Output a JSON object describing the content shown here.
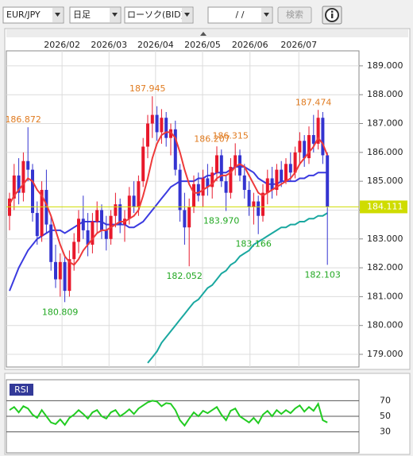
{
  "toolbar": {
    "pair": "EUR/JPY",
    "timeframe": "日足",
    "chart_kind": "ローソク(BID)",
    "date": "/ /",
    "search": "検索"
  },
  "chart_data": [
    {
      "type": "candlestick",
      "up_color": "#e8192c",
      "down_color": "#3434d0",
      "ylim": [
        178.56,
        189.52
      ],
      "yticks": [
        {
          "value": 179,
          "label": "179.000"
        },
        {
          "value": 180,
          "label": "180.000"
        },
        {
          "value": 181,
          "label": "181.000"
        },
        {
          "value": 182,
          "label": "182.000"
        },
        {
          "value": 183,
          "label": "183.000"
        },
        {
          "value": 184,
          "label": "184.000"
        },
        {
          "value": 185,
          "label": "185.000"
        },
        {
          "value": 186,
          "label": "186.000"
        },
        {
          "value": 187,
          "label": "187.000"
        },
        {
          "value": 188,
          "label": "188.000"
        },
        {
          "value": 189,
          "label": "189.000"
        }
      ],
      "xticks": [
        {
          "value": 11.4,
          "label": "2026/02"
        },
        {
          "value": 21.6,
          "label": "2026/03"
        },
        {
          "value": 31.7,
          "label": "2026/04"
        },
        {
          "value": 41.9,
          "label": "2026/05"
        },
        {
          "value": 52.2,
          "label": "2026/06"
        },
        {
          "value": 62.8,
          "label": "2026/07"
        }
      ],
      "grid": true,
      "ohlc": [
        [
          183.8,
          184.6,
          183.3,
          184.4
        ],
        [
          184.4,
          185.6,
          184.0,
          185.2
        ],
        [
          185.2,
          185.8,
          184.2,
          184.6
        ],
        [
          184.6,
          186.0,
          184.3,
          185.7
        ],
        [
          185.7,
          186.872,
          185.0,
          185.4
        ],
        [
          185.4,
          185.6,
          183.6,
          183.9
        ],
        [
          183.9,
          184.3,
          182.8,
          183.1
        ],
        [
          183.1,
          185.0,
          182.9,
          184.7
        ],
        [
          184.7,
          185.4,
          183.2,
          183.5
        ],
        [
          183.5,
          183.8,
          181.9,
          182.2
        ],
        [
          182.2,
          182.8,
          181.3,
          181.6
        ],
        [
          181.6,
          182.5,
          181.0,
          182.2
        ],
        [
          182.2,
          182.4,
          180.809,
          181.2
        ],
        [
          181.2,
          182.6,
          181.0,
          182.3
        ],
        [
          182.3,
          183.2,
          181.9,
          182.9
        ],
        [
          182.9,
          184.0,
          182.5,
          183.7
        ],
        [
          183.7,
          184.5,
          183.0,
          183.3
        ],
        [
          183.3,
          183.9,
          182.4,
          182.8
        ],
        [
          182.8,
          183.9,
          182.5,
          183.6
        ],
        [
          183.6,
          184.3,
          183.2,
          184.0
        ],
        [
          184.0,
          184.2,
          183.0,
          183.3
        ],
        [
          183.3,
          183.8,
          182.6,
          183.0
        ],
        [
          183.0,
          184.0,
          182.8,
          183.8
        ],
        [
          183.8,
          184.6,
          183.4,
          184.2
        ],
        [
          184.2,
          184.4,
          183.2,
          183.5
        ],
        [
          183.5,
          184.0,
          182.9,
          183.7
        ],
        [
          183.7,
          184.8,
          183.5,
          184.5
        ],
        [
          184.5,
          185.0,
          183.9,
          184.1
        ],
        [
          184.1,
          185.2,
          183.8,
          185.0
        ],
        [
          185.0,
          186.5,
          184.8,
          186.2
        ],
        [
          186.2,
          187.3,
          185.8,
          187.0
        ],
        [
          187.0,
          187.945,
          186.5,
          187.3
        ],
        [
          187.3,
          187.6,
          186.4,
          186.7
        ],
        [
          186.7,
          187.5,
          186.3,
          187.2
        ],
        [
          187.2,
          187.4,
          186.2,
          186.5
        ],
        [
          186.5,
          187.0,
          185.9,
          186.8
        ],
        [
          186.8,
          187.1,
          185.2,
          185.4
        ],
        [
          185.4,
          185.6,
          183.6,
          184.0
        ],
        [
          184.0,
          184.6,
          182.8,
          183.4
        ],
        [
          183.4,
          184.4,
          182.052,
          184.1
        ],
        [
          184.1,
          185.2,
          183.9,
          184.9
        ],
        [
          184.9,
          185.3,
          184.3,
          184.5
        ],
        [
          184.5,
          185.4,
          184.1,
          185.1
        ],
        [
          185.1,
          185.6,
          184.5,
          184.8
        ],
        [
          184.8,
          185.5,
          184.4,
          185.3
        ],
        [
          185.3,
          186.207,
          185.0,
          185.9
        ],
        [
          185.9,
          186.1,
          184.8,
          185.0
        ],
        [
          185.0,
          185.2,
          183.97,
          184.6
        ],
        [
          184.6,
          185.8,
          184.4,
          185.5
        ],
        [
          185.5,
          186.315,
          185.2,
          185.9
        ],
        [
          185.9,
          186.1,
          185.0,
          185.2
        ],
        [
          185.2,
          185.6,
          184.4,
          184.7
        ],
        [
          184.7,
          185.0,
          183.8,
          184.1
        ],
        [
          184.1,
          184.6,
          183.5,
          184.3
        ],
        [
          184.3,
          184.5,
          183.166,
          183.8
        ],
        [
          183.8,
          184.9,
          183.6,
          184.6
        ],
        [
          184.6,
          185.4,
          184.2,
          185.1
        ],
        [
          185.1,
          185.5,
          184.4,
          184.7
        ],
        [
          184.7,
          185.6,
          184.5,
          185.4
        ],
        [
          185.4,
          185.7,
          184.8,
          185.0
        ],
        [
          185.0,
          185.8,
          184.9,
          185.6
        ],
        [
          185.6,
          186.0,
          185.0,
          185.3
        ],
        [
          185.3,
          186.2,
          185.1,
          186.0
        ],
        [
          186.0,
          186.7,
          185.6,
          186.4
        ],
        [
          186.4,
          186.6,
          185.5,
          185.8
        ],
        [
          185.8,
          186.9,
          185.6,
          186.6
        ],
        [
          186.6,
          187.3,
          186.0,
          186.3
        ],
        [
          186.3,
          187.474,
          186.1,
          187.2
        ],
        [
          187.2,
          187.4,
          185.6,
          185.9
        ],
        [
          185.9,
          186.0,
          182.103,
          184.111
        ]
      ],
      "series": [
        {
          "color": "#ee3a3a",
          "values": [
            184.2,
            184.5,
            184.7,
            184.9,
            185.1,
            185.0,
            184.7,
            184.5,
            184.2,
            183.8,
            183.3,
            182.8,
            182.4,
            182.2,
            182.1,
            182.3,
            182.6,
            182.8,
            183.0,
            183.2,
            183.3,
            183.3,
            183.4,
            183.5,
            183.6,
            183.6,
            183.7,
            183.8,
            184.0,
            184.5,
            185.1,
            185.8,
            186.3,
            186.6,
            186.7,
            186.7,
            186.5,
            186.0,
            185.4,
            184.9,
            184.6,
            184.6,
            184.7,
            184.8,
            184.9,
            185.1,
            185.2,
            185.2,
            185.3,
            185.5,
            185.6,
            185.5,
            185.2,
            184.9,
            184.6,
            184.5,
            184.6,
            184.7,
            184.8,
            184.9,
            185.0,
            185.1,
            185.3,
            185.6,
            185.8,
            186.0,
            186.2,
            186.5,
            186.3,
            185.9
          ]
        },
        {
          "color": "#3b3be0",
          "values": [
            181.2,
            181.6,
            182.0,
            182.3,
            182.6,
            182.8,
            183.0,
            183.1,
            183.2,
            183.3,
            183.3,
            183.3,
            183.2,
            183.3,
            183.4,
            183.5,
            183.6,
            183.6,
            183.6,
            183.6,
            183.6,
            183.5,
            183.5,
            183.5,
            183.5,
            183.5,
            183.4,
            183.4,
            183.5,
            183.6,
            183.8,
            184.0,
            184.2,
            184.4,
            184.6,
            184.8,
            184.9,
            185.0,
            185.0,
            185.0,
            185.0,
            185.1,
            185.1,
            185.2,
            185.2,
            185.3,
            185.3,
            185.3,
            185.4,
            185.5,
            185.5,
            185.5,
            185.4,
            185.3,
            185.1,
            185.0,
            184.9,
            184.9,
            184.9,
            185.0,
            185.0,
            185.0,
            185.0,
            185.1,
            185.1,
            185.2,
            185.2,
            185.3,
            185.3,
            185.3
          ]
        },
        {
          "color": "#1aa8a0",
          "values": [
            null,
            null,
            null,
            null,
            null,
            null,
            null,
            null,
            null,
            null,
            null,
            null,
            null,
            null,
            null,
            null,
            null,
            null,
            null,
            null,
            null,
            null,
            null,
            null,
            null,
            null,
            null,
            null,
            null,
            null,
            178.7,
            178.9,
            179.1,
            179.4,
            179.6,
            179.8,
            180.0,
            180.2,
            180.4,
            180.6,
            180.8,
            180.9,
            181.1,
            181.3,
            181.4,
            181.6,
            181.8,
            181.9,
            182.1,
            182.2,
            182.4,
            182.5,
            182.6,
            182.8,
            182.9,
            183.0,
            183.1,
            183.2,
            183.3,
            183.4,
            183.4,
            183.5,
            183.5,
            183.6,
            183.6,
            183.7,
            183.7,
            183.8,
            183.8,
            183.9
          ]
        }
      ],
      "annotations": [
        {
          "text": "186.872",
          "value": 186.872,
          "x": 4,
          "kind": "high"
        },
        {
          "text": "187.945",
          "value": 187.945,
          "x": 31,
          "kind": "high"
        },
        {
          "text": "186.207",
          "value": 186.207,
          "x": 45,
          "kind": "high"
        },
        {
          "text": "186.315",
          "value": 186.315,
          "x": 49,
          "kind": "high"
        },
        {
          "text": "187.474",
          "value": 187.474,
          "x": 67,
          "kind": "high"
        },
        {
          "text": "180.809",
          "value": 180.809,
          "x": 12,
          "kind": "low"
        },
        {
          "text": "182.052",
          "value": 182.052,
          "x": 39,
          "kind": "low"
        },
        {
          "text": "183.970",
          "value": 183.97,
          "x": 47,
          "kind": "low"
        },
        {
          "text": "183.166",
          "value": 183.166,
          "x": 54,
          "kind": "low"
        },
        {
          "text": "182.103",
          "value": 182.103,
          "x": 69,
          "kind": "low"
        }
      ],
      "high_color": "#e07b20",
      "low_color": "#22a822",
      "last_price": 184.111,
      "last_color": "#cfdc00"
    },
    {
      "type": "line",
      "title": "RSI",
      "color": "#22cc22",
      "ylim": [
        3,
        97
      ],
      "yticks": [
        70,
        50,
        30
      ],
      "values": [
        58,
        62,
        55,
        63,
        60,
        52,
        48,
        58,
        50,
        42,
        40,
        46,
        39,
        48,
        52,
        58,
        53,
        47,
        55,
        58,
        50,
        47,
        55,
        58,
        50,
        54,
        59,
        53,
        60,
        64,
        68,
        70,
        69,
        63,
        67,
        66,
        58,
        45,
        38,
        47,
        55,
        50,
        57,
        54,
        58,
        62,
        52,
        45,
        57,
        60,
        50,
        46,
        42,
        48,
        41,
        52,
        57,
        50,
        58,
        53,
        58,
        54,
        60,
        64,
        56,
        62,
        57,
        66,
        45,
        42
      ]
    }
  ]
}
